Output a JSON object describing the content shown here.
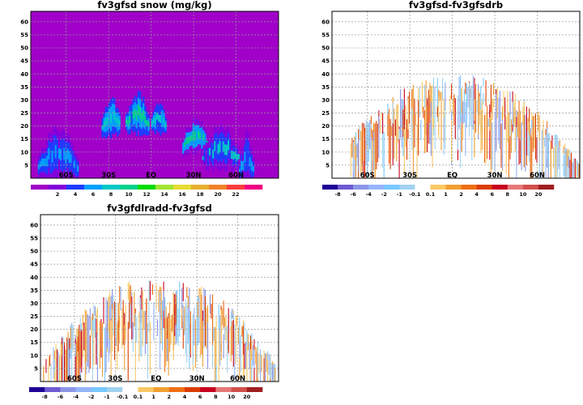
{
  "chart_data": [
    {
      "type": "heatmap",
      "title": "fv3gfsd snow (mg/kg)",
      "background_color": "#a000c8",
      "x_ticks": [
        "60S",
        "30S",
        "EQ",
        "30N",
        "60N"
      ],
      "y_ticks": [
        "5",
        "10",
        "15",
        "20",
        "25",
        "30",
        "35",
        "40",
        "45",
        "50",
        "55",
        "60"
      ],
      "ylim": [
        0,
        64
      ],
      "xlim": [
        -85,
        90
      ],
      "colorbar": {
        "labels": [
          "2",
          "4",
          "6",
          "8",
          "10",
          "12",
          "14",
          "16",
          "18",
          "20",
          "22"
        ],
        "colors": [
          "#a000c8",
          "#8200dc",
          "#1e3cff",
          "#00a0ff",
          "#00c8c8",
          "#00d28c",
          "#00dc00",
          "#a0e632",
          "#e6dc32",
          "#e6af2d",
          "#f08228",
          "#fa3c3c",
          "#f00082"
        ]
      },
      "features": [
        {
          "name": "southern-cloud-column",
          "x_range": [
            -80,
            -50
          ],
          "y_range": [
            1,
            22
          ],
          "peak": "4"
        },
        {
          "name": "southern-midlat-band",
          "x_range": [
            -35,
            10
          ],
          "y_range": [
            20,
            33
          ],
          "peak": "12"
        },
        {
          "name": "northern-midlat-band",
          "x_range": [
            25,
            70
          ],
          "y_range": [
            8,
            25
          ],
          "peak": "14"
        }
      ]
    },
    {
      "type": "heatmap",
      "title": "fv3gfsd-fv3gfsdrb",
      "background_color": "#ffffff",
      "x_ticks": [
        "60S",
        "30S",
        "EQ",
        "30N",
        "60N"
      ],
      "y_ticks": [
        "5",
        "10",
        "15",
        "20",
        "25",
        "30",
        "35",
        "40",
        "45",
        "50",
        "55",
        "60"
      ],
      "ylim": [
        0,
        64
      ],
      "xlim": [
        -85,
        90
      ],
      "colorbar": {
        "labels": [
          "-8",
          "-6",
          "-4",
          "-2",
          "-1",
          "-0.1",
          "0.1",
          "1",
          "2",
          "4",
          "6",
          "8",
          "10",
          "20"
        ],
        "colors": [
          "#1e0096",
          "#6e5ad2",
          "#8c96e6",
          "#96b4fa",
          "#78c8ff",
          "#a0d2f0",
          "#ffffff",
          "#fac864",
          "#f0a032",
          "#f06e14",
          "#dc3c00",
          "#c8001e",
          "#e67878",
          "#d2504b",
          "#a01e1e"
        ]
      }
    },
    {
      "type": "heatmap",
      "title": "fv3gfdlradd-fv3gfsd",
      "background_color": "#ffffff",
      "x_ticks": [
        "60S",
        "30S",
        "EQ",
        "30N",
        "60N"
      ],
      "y_ticks": [
        "5",
        "10",
        "15",
        "20",
        "25",
        "30",
        "35",
        "40",
        "45",
        "50",
        "55",
        "60"
      ],
      "ylim": [
        0,
        64
      ],
      "xlim": [
        -85,
        90
      ],
      "colorbar": {
        "labels": [
          "-8",
          "-6",
          "-4",
          "-2",
          "-1",
          "-0.1",
          "0.1",
          "1",
          "2",
          "4",
          "6",
          "8",
          "10",
          "20"
        ],
        "colors": [
          "#1e0096",
          "#6e5ad2",
          "#8c96e6",
          "#96b4fa",
          "#78c8ff",
          "#a0d2f0",
          "#ffffff",
          "#fac864",
          "#f0a032",
          "#f06e14",
          "#dc3c00",
          "#c8001e",
          "#e67878",
          "#d2504b",
          "#a01e1e"
        ]
      }
    }
  ]
}
